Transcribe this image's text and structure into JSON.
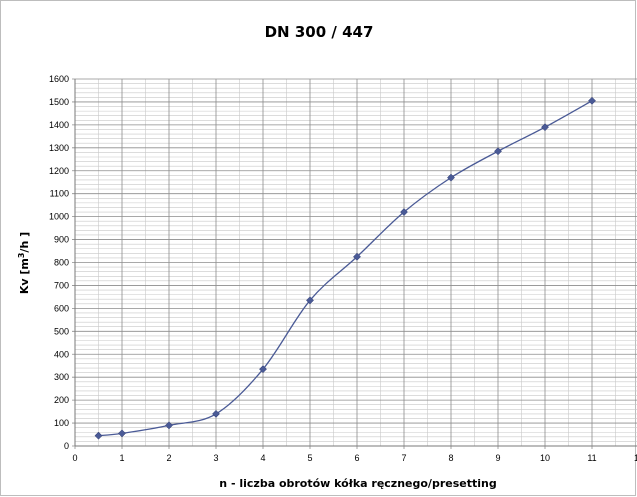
{
  "chart_data": {
    "type": "line",
    "title": "DN 300 / 447",
    "xlabel": "n - liczba obrotów kółka ręcznego/presetting",
    "ylabel": "Kv [m3/h]",
    "ylabel_parts": {
      "before": "Kv [m",
      "sup": "3",
      "after": "/h ]"
    },
    "xlim": [
      0,
      12
    ],
    "ylim": [
      0,
      1600
    ],
    "xticks": [
      0,
      1,
      2,
      3,
      4,
      5,
      6,
      7,
      8,
      9,
      10,
      11
    ],
    "yticks": [
      0,
      100,
      200,
      300,
      400,
      500,
      600,
      700,
      800,
      900,
      1000,
      1100,
      1200,
      1300,
      1400,
      1500,
      1600
    ],
    "grid": true,
    "series": [
      {
        "x": [
          0.5,
          1,
          2,
          3,
          4,
          5,
          6,
          7,
          8,
          9,
          10,
          11
        ],
        "y": [
          45,
          55,
          90,
          140,
          335,
          635,
          825,
          1020,
          1170,
          1285,
          1390,
          1505
        ],
        "color": "#4a5a96",
        "marker": "diamond"
      }
    ],
    "colors": {
      "grid_major": "#8c8c8c",
      "grid_minor": "#c8c8c8",
      "axis": "#7a7a7a"
    }
  }
}
